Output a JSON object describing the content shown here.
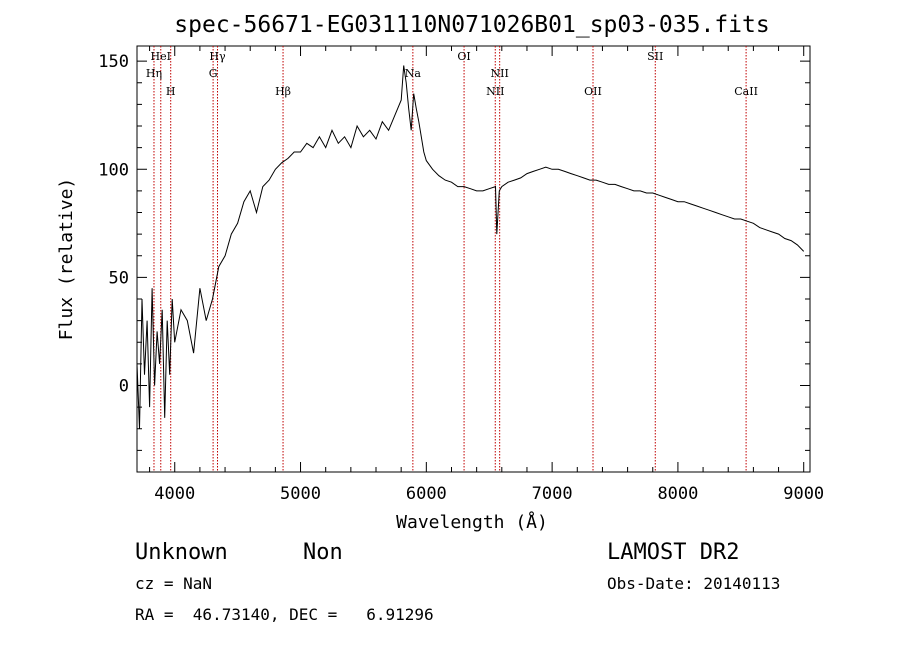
{
  "chart_data": {
    "type": "line",
    "title": "spec-56671-EG031110N071026B01_sp03-035.fits",
    "xlabel": "Wavelength (Å)",
    "ylabel": "Flux (relative)",
    "xlim": [
      3700,
      9050
    ],
    "ylim": [
      -40,
      157
    ],
    "xticks": [
      {
        "value": 4000,
        "label": "4000"
      },
      {
        "value": 5000,
        "label": "5000"
      },
      {
        "value": 6000,
        "label": "6000"
      },
      {
        "value": 7000,
        "label": "7000"
      },
      {
        "value": 8000,
        "label": "8000"
      },
      {
        "value": 9000,
        "label": "9000"
      }
    ],
    "yticks": [
      {
        "value": 0,
        "label": "0"
      },
      {
        "value": 50,
        "label": "50"
      },
      {
        "value": 100,
        "label": "100"
      },
      {
        "value": 150,
        "label": "150"
      }
    ],
    "x": [
      3700,
      3720,
      3740,
      3760,
      3780,
      3800,
      3820,
      3840,
      3860,
      3880,
      3900,
      3920,
      3940,
      3960,
      3980,
      4000,
      4050,
      4100,
      4150,
      4200,
      4250,
      4300,
      4350,
      4400,
      4450,
      4500,
      4550,
      4600,
      4650,
      4700,
      4750,
      4800,
      4850,
      4900,
      4950,
      5000,
      5050,
      5100,
      5150,
      5200,
      5250,
      5300,
      5350,
      5400,
      5450,
      5500,
      5550,
      5600,
      5650,
      5700,
      5750,
      5800,
      5820,
      5840,
      5860,
      5880,
      5900,
      5920,
      5940,
      5960,
      5980,
      6000,
      6050,
      6100,
      6150,
      6200,
      6250,
      6300,
      6350,
      6400,
      6450,
      6500,
      6550,
      6560,
      6580,
      6600,
      6650,
      6700,
      6750,
      6800,
      6850,
      6900,
      6950,
      7000,
      7050,
      7100,
      7150,
      7200,
      7250,
      7300,
      7350,
      7400,
      7450,
      7500,
      7550,
      7600,
      7650,
      7700,
      7750,
      7800,
      7850,
      7900,
      7950,
      8000,
      8050,
      8100,
      8150,
      8200,
      8250,
      8300,
      8350,
      8400,
      8450,
      8500,
      8550,
      8600,
      8650,
      8700,
      8750,
      8800,
      8850,
      8900,
      8950,
      9000
    ],
    "y": [
      10,
      -20,
      40,
      5,
      30,
      -10,
      45,
      0,
      25,
      10,
      35,
      -15,
      30,
      5,
      40,
      20,
      35,
      30,
      15,
      45,
      30,
      40,
      55,
      60,
      70,
      75,
      85,
      90,
      80,
      92,
      95,
      100,
      103,
      105,
      108,
      108,
      112,
      110,
      115,
      110,
      118,
      112,
      115,
      110,
      120,
      115,
      118,
      114,
      122,
      118,
      125,
      132,
      148,
      140,
      128,
      118,
      135,
      128,
      122,
      115,
      108,
      104,
      100,
      97,
      95,
      94,
      92,
      92,
      91,
      90,
      90,
      91,
      92,
      70,
      90,
      92,
      94,
      95,
      96,
      98,
      99,
      100,
      101,
      100,
      100,
      99,
      98,
      97,
      96,
      95,
      95,
      94,
      93,
      93,
      92,
      91,
      90,
      90,
      89,
      89,
      88,
      87,
      86,
      85,
      85,
      84,
      83,
      82,
      81,
      80,
      79,
      78,
      77,
      77,
      76,
      75,
      73,
      72,
      71,
      70,
      68,
      67,
      65,
      62
    ],
    "lines": [
      {
        "name": "Hη",
        "wavelength": 3835
      },
      {
        "name": "HeI",
        "wavelength": 3889
      },
      {
        "name": "H",
        "wavelength": 3968
      },
      {
        "name": "Hγ",
        "wavelength": 4340
      },
      {
        "name": "G",
        "wavelength": 4305
      },
      {
        "name": "Hβ",
        "wavelength": 4861
      },
      {
        "name": "Na",
        "wavelength": 5893
      },
      {
        "name": "OI",
        "wavelength": 6300
      },
      {
        "name": "NII",
        "wavelength": 6548
      },
      {
        "name": "NII",
        "wavelength": 6583
      },
      {
        "name": "OII",
        "wavelength": 7325
      },
      {
        "name": "SII",
        "wavelength": 7820
      },
      {
        "name": "CaII",
        "wavelength": 8542
      }
    ]
  },
  "info": {
    "classification": "Unknown",
    "subclass": "Non",
    "survey": "LAMOST DR2",
    "cz": "cz = NaN",
    "obs_date": "Obs-Date: 20140113",
    "coords": "RA =  46.73140, DEC =   6.91296"
  },
  "colors": {
    "line_marker": "#c00000",
    "spectrum": "#000000"
  }
}
